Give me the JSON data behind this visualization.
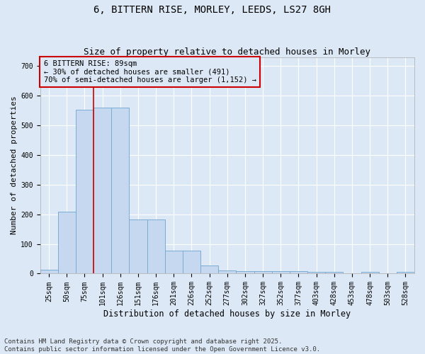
{
  "title_line1": "6, BITTERN RISE, MORLEY, LEEDS, LS27 8GH",
  "title_line2": "Size of property relative to detached houses in Morley",
  "xlabel": "Distribution of detached houses by size in Morley",
  "ylabel": "Number of detached properties",
  "categories": [
    "25sqm",
    "50sqm",
    "75sqm",
    "101sqm",
    "126sqm",
    "151sqm",
    "176sqm",
    "201sqm",
    "226sqm",
    "252sqm",
    "277sqm",
    "302sqm",
    "327sqm",
    "352sqm",
    "377sqm",
    "403sqm",
    "428sqm",
    "453sqm",
    "478sqm",
    "503sqm",
    "528sqm"
  ],
  "values": [
    12,
    210,
    553,
    560,
    560,
    182,
    182,
    77,
    77,
    28,
    11,
    8,
    8,
    8,
    8,
    5,
    5,
    0,
    5,
    0,
    5
  ],
  "bar_color": "#c5d8f0",
  "bar_edge_color": "#7aadd4",
  "background_color": "#dce8f5",
  "grid_color": "#ffffff",
  "vline_color": "#cc0000",
  "vline_x_index": 2.5,
  "annotation_text": "6 BITTERN RISE: 89sqm\n← 30% of detached houses are smaller (491)\n70% of semi-detached houses are larger (1,152) →",
  "annotation_box_color": "#cc0000",
  "annotation_fontsize": 7.5,
  "title_fontsize1": 10,
  "title_fontsize2": 9,
  "xlabel_fontsize": 8.5,
  "ylabel_fontsize": 8,
  "tick_fontsize": 7,
  "footer": "Contains HM Land Registry data © Crown copyright and database right 2025.\nContains public sector information licensed under the Open Government Licence v3.0.",
  "footer_fontsize": 6.5,
  "ylim": [
    0,
    730
  ],
  "yticks": [
    0,
    100,
    200,
    300,
    400,
    500,
    600,
    700
  ]
}
